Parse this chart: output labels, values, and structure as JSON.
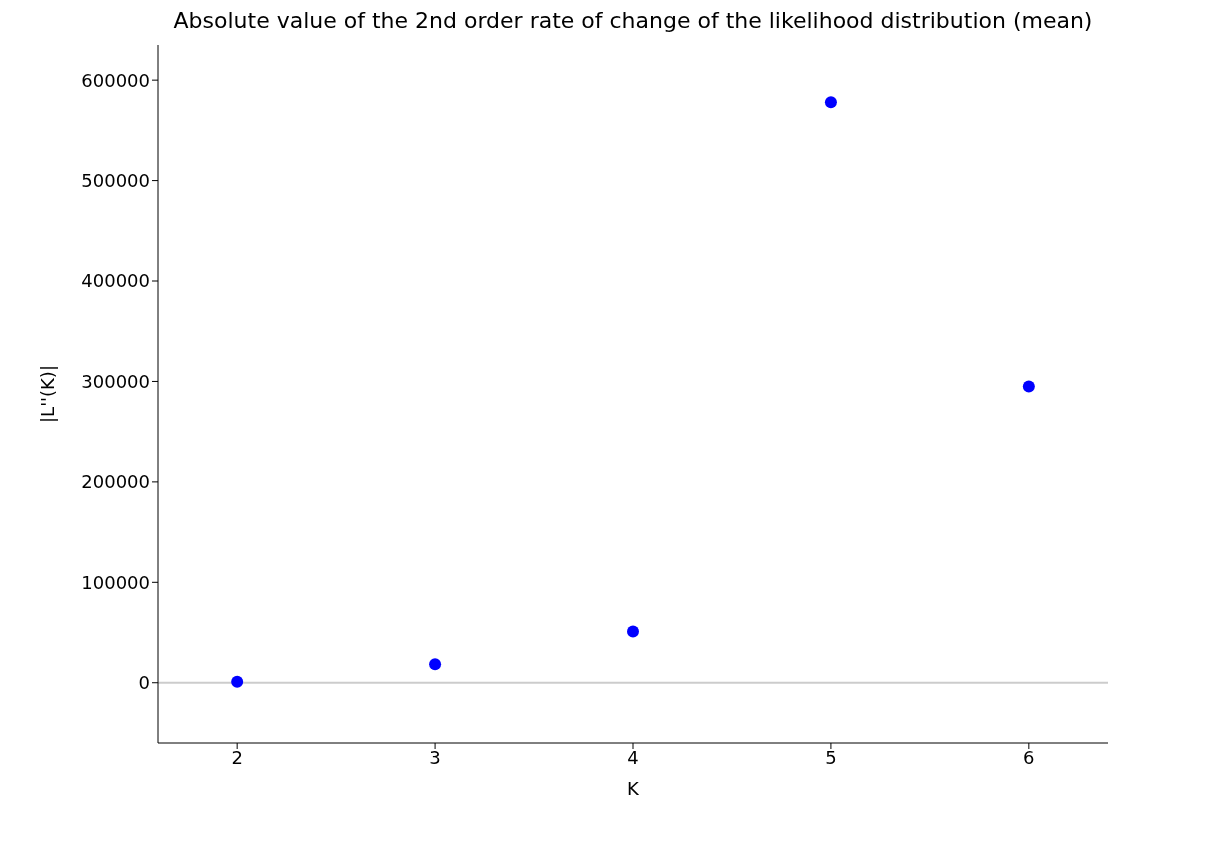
{
  "chart_data": {
    "type": "scatter",
    "title": "Absolute value of the 2nd order rate of change of the likelihood distribution (mean)",
    "xlabel": "K",
    "ylabel": "|L''(K)|",
    "x": [
      2,
      3,
      4,
      5,
      6
    ],
    "series": [
      {
        "color": "#0000ff",
        "values": [
          1000,
          18500,
          51000,
          578000,
          295000
        ]
      }
    ],
    "xlim": [
      1.6,
      6.4
    ],
    "xticks": [
      2,
      3,
      4,
      5,
      6
    ],
    "ylim": [
      -60000,
      635000
    ],
    "yticks": [
      0,
      100000,
      200000,
      300000,
      400000,
      500000,
      600000
    ],
    "ref_lines": [
      {
        "axis": "y",
        "value": 0,
        "color": "#cccccc"
      }
    ],
    "marker": "circle",
    "grid": false,
    "legend": false
  }
}
